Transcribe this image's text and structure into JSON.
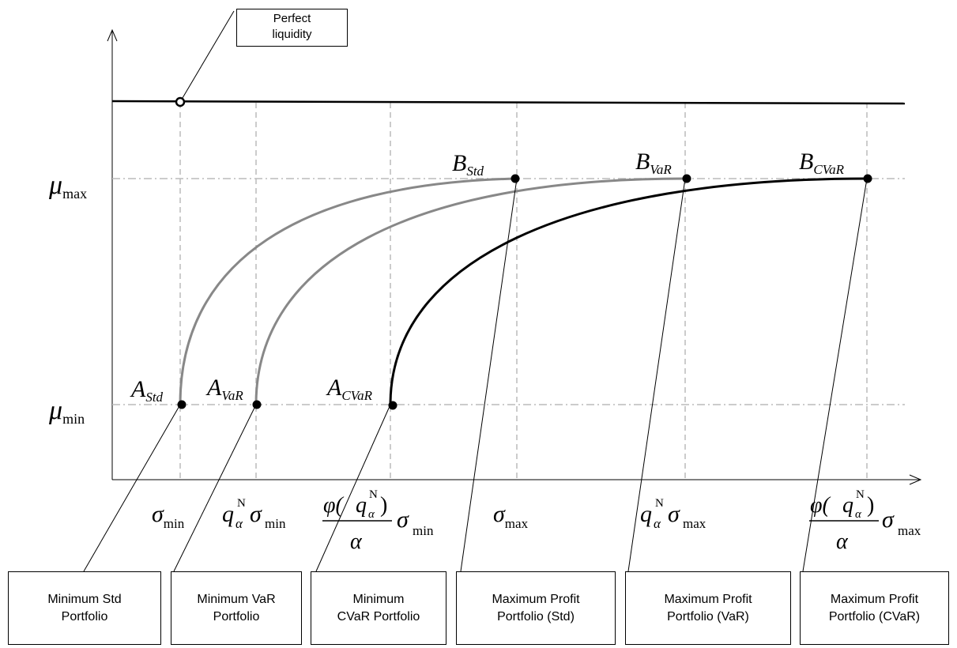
{
  "callout_top": "Perfect\nliquidity",
  "y_labels": {
    "mu": "μ",
    "max_sub": "max",
    "min_sub": "min"
  },
  "points": {
    "a_std": {
      "main": "A",
      "sub": "Std"
    },
    "a_var": {
      "main": "A",
      "sub": "VaR"
    },
    "a_cvar": {
      "main": "A",
      "sub": "CVaR"
    },
    "b_std": {
      "main": "B",
      "sub": "Std"
    },
    "b_var": {
      "main": "B",
      "sub": "VaR"
    },
    "b_cvar": {
      "main": "B",
      "sub": "CVaR"
    }
  },
  "x_labels": {
    "sigma": "σ",
    "min_sub": "min",
    "max_sub": "max",
    "q": "q",
    "q_sub": "α",
    "q_sup": "N",
    "phi": "φ(",
    "close": ")",
    "alpha": "α"
  },
  "bottom_boxes": [
    "Minimum Std\nPortfolio",
    "Minimum VaR\nPortfolio",
    "Minimum\nCVaR Portfolio",
    "Maximum Profit\nPortfolio (Std)",
    "Maximum Profit\nPortfolio (VaR)",
    "Maximum Profit\nPortfolio (CVaR)"
  ],
  "colors": {
    "grey_curve": "#888888",
    "black_curve": "#000000",
    "grid": "#bbbbbb"
  }
}
